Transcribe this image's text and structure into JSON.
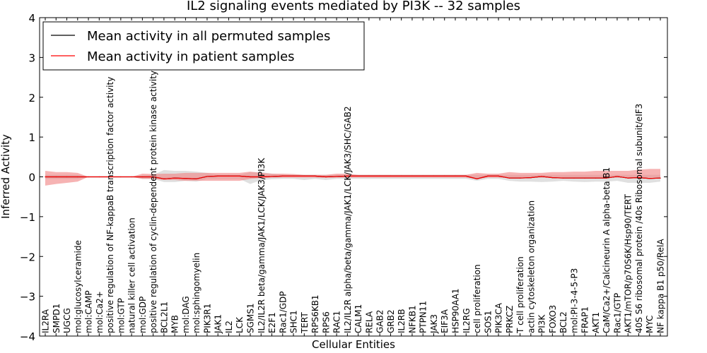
{
  "chart_data": {
    "type": "line",
    "title": "IL2 signaling events mediated by PI3K -- 32 samples",
    "xlabel": "Cellular Entities",
    "ylabel": "Inferred Activity",
    "ylim": [
      -4,
      4
    ],
    "yticks": [
      "−4",
      "−3",
      "−2",
      "−1",
      "0",
      "1",
      "2",
      "3",
      "4"
    ],
    "grid": false,
    "legend_position": "top-left",
    "colors": {
      "permuted": "#000000",
      "patient": "#ff0000",
      "patient_band": "#f08080",
      "permuted_band": "#bbbbbb"
    },
    "categories": [
      "IL2RA",
      "SMPD1",
      "UGCG",
      "mol:glucosylceramide",
      "mol:CAMP",
      "mol:Ca2+",
      "positive regulation of NF-kappaB transcription factor activity",
      "mol:GTP",
      "natural killer cell activation",
      "mol:GDP",
      "positive regulation of cyclin-dependent protein kinase activity",
      "BCL2L1",
      "MYB",
      "mol:DAG",
      "mol:sphingomyelin",
      "PIK3R1",
      "JAK1",
      "IL2",
      "LCK",
      "SGMS1",
      "IL2/IL2R beta/gamma/JAK1/LCK/JAK3/PI3K",
      "E2F1",
      "Rac1/GDP",
      "SHC1",
      "TERT",
      "RPS6KB1",
      "RPS6",
      "RAC1",
      "IL2/IL2R alpha/beta/gamma/JAK1/LCK/JAK3/SHC/GAB2",
      "CALM1",
      "RELA",
      "GAB2",
      "GRB2",
      "IL2RB",
      "NFKB1",
      "PTPN11",
      "JAK3",
      "EIF3A",
      "HSP90AA1",
      "IL2RG",
      "cell proliferation",
      "SOS1",
      "PIK3CA",
      "PRKCZ",
      "T cell proliferation",
      "actin cytoskeleton organization",
      "PI3K",
      "FOXO3",
      "BCL2",
      "mol:PI-3-4-5-P3",
      "FRAP1",
      "AKT1",
      "CaM/Ca2+/Calcineurin A alpha-beta B1",
      "Rac1/GTP",
      "AKT1/mTOR/p70S6K/Hsp90/TERT",
      "40S S6 ribosomal protein /40s Ribosomal subunit/eIF3",
      "MYC",
      "NF kappa B1 p50/RelA"
    ],
    "series": [
      {
        "name": "Mean activity in all permuted samples",
        "values": [
          0.0,
          0.0,
          0.0,
          0.0,
          0.0,
          0.0,
          0.0,
          0.0,
          0.0,
          0.0,
          0.0,
          -0.05,
          -0.03,
          -0.04,
          -0.05,
          0.01,
          0.02,
          0.02,
          0.02,
          0.0,
          0.0,
          0.01,
          0.02,
          0.02,
          0.02,
          0.02,
          0.0,
          0.01,
          0.02,
          0.02,
          0.02,
          0.02,
          0.02,
          0.02,
          0.02,
          0.02,
          0.02,
          0.02,
          0.02,
          0.02,
          -0.05,
          0.02,
          0.02,
          -0.03,
          -0.03,
          -0.02,
          0.01,
          -0.02,
          -0.03,
          -0.03,
          -0.03,
          -0.03,
          -0.03,
          0.01,
          -0.03,
          -0.02,
          -0.04,
          -0.03
        ],
        "band_low": [
          -0.05,
          -0.05,
          -0.05,
          -0.05,
          0.0,
          0.0,
          0.0,
          0.0,
          0.0,
          -0.05,
          -0.05,
          -0.13,
          -0.13,
          -0.1,
          -0.12,
          -0.05,
          -0.05,
          -0.05,
          -0.05,
          -0.18,
          -0.08,
          -0.06,
          -0.05,
          -0.05,
          -0.08,
          -0.05,
          -0.08,
          -0.05,
          -0.05,
          -0.05,
          -0.05,
          -0.05,
          -0.05,
          -0.05,
          -0.05,
          -0.05,
          -0.05,
          -0.05,
          -0.05,
          -0.05,
          -0.1,
          -0.05,
          -0.05,
          -0.1,
          -0.12,
          -0.12,
          -0.13,
          -0.12,
          -0.1,
          -0.12,
          -0.13,
          -0.12,
          -0.12,
          -0.1,
          -0.15,
          -0.15,
          -0.15,
          -0.12
        ],
        "band_high": [
          0.05,
          0.05,
          0.05,
          0.05,
          0.0,
          0.0,
          0.0,
          0.0,
          0.0,
          0.03,
          0.05,
          0.17,
          0.15,
          0.15,
          0.13,
          0.1,
          0.05,
          0.05,
          0.05,
          0.12,
          0.12,
          0.08,
          0.05,
          0.05,
          0.05,
          0.05,
          0.05,
          0.05,
          0.05,
          0.05,
          0.05,
          0.05,
          0.05,
          0.05,
          0.05,
          0.05,
          0.05,
          0.05,
          0.05,
          0.05,
          0.05,
          0.05,
          0.05,
          0.05,
          0.05,
          0.05,
          0.05,
          0.05,
          0.05,
          0.05,
          0.05,
          0.05,
          0.05,
          0.05,
          0.05,
          0.05,
          0.05,
          0.05
        ]
      },
      {
        "name": "Mean activity in patient samples",
        "values": [
          0.0,
          0.0,
          0.0,
          0.0,
          0.0,
          0.0,
          0.0,
          0.0,
          0.0,
          0.0,
          0.0,
          -0.05,
          -0.03,
          -0.04,
          -0.05,
          0.01,
          0.02,
          0.02,
          0.02,
          0.0,
          0.0,
          0.01,
          0.02,
          0.02,
          0.02,
          0.02,
          0.0,
          0.01,
          0.02,
          0.02,
          0.02,
          0.02,
          0.02,
          0.02,
          0.02,
          0.02,
          0.02,
          0.02,
          0.02,
          0.02,
          -0.05,
          0.02,
          0.02,
          -0.03,
          -0.03,
          -0.02,
          0.01,
          -0.02,
          -0.03,
          -0.03,
          -0.03,
          -0.03,
          -0.03,
          0.01,
          -0.03,
          -0.02,
          -0.04,
          -0.03
        ],
        "band_low": [
          -0.22,
          -0.18,
          -0.15,
          -0.12,
          0.0,
          0.0,
          0.0,
          0.0,
          0.0,
          -0.05,
          -0.05,
          -0.08,
          -0.08,
          -0.1,
          -0.1,
          -0.1,
          -0.1,
          -0.1,
          -0.1,
          -0.05,
          -0.03,
          -0.02,
          -0.02,
          -0.02,
          -0.02,
          -0.02,
          -0.02,
          -0.02,
          -0.02,
          -0.02,
          -0.02,
          -0.02,
          -0.02,
          -0.02,
          -0.02,
          -0.02,
          -0.02,
          -0.02,
          -0.02,
          -0.02,
          -0.05,
          -0.02,
          -0.02,
          -0.02,
          -0.02,
          -0.02,
          -0.02,
          -0.02,
          -0.02,
          -0.02,
          -0.02,
          -0.02,
          -0.02,
          -0.02,
          -0.02,
          -0.02,
          -0.02,
          -0.02
        ],
        "band_high": [
          0.15,
          0.12,
          0.12,
          0.1,
          0.0,
          0.0,
          0.0,
          0.0,
          0.0,
          0.08,
          0.07,
          0.08,
          0.08,
          0.1,
          0.1,
          0.1,
          0.1,
          0.1,
          0.1,
          0.13,
          0.1,
          0.08,
          0.08,
          0.07,
          0.05,
          0.05,
          0.05,
          0.08,
          0.08,
          0.05,
          0.05,
          0.05,
          0.05,
          0.05,
          0.05,
          0.05,
          0.05,
          0.05,
          0.05,
          0.05,
          0.1,
          0.08,
          0.08,
          0.12,
          0.1,
          0.1,
          0.1,
          0.12,
          0.12,
          0.13,
          0.13,
          0.15,
          0.15,
          0.15,
          0.15,
          0.18,
          0.2,
          0.2
        ]
      }
    ]
  }
}
